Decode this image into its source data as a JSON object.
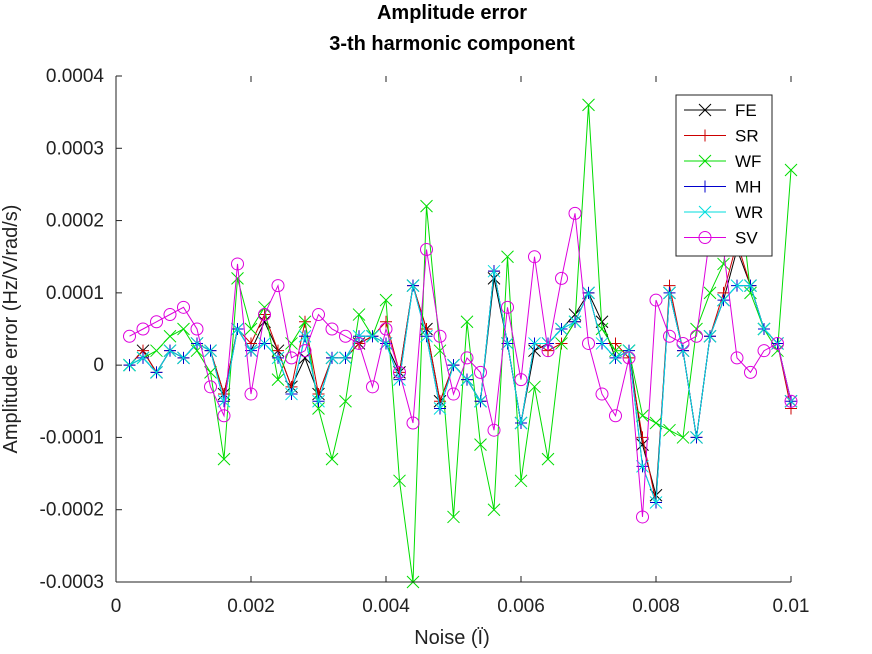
{
  "chart_data": {
    "type": "line",
    "title": "Amplitude error",
    "subtitle": "3-th harmonic component",
    "xlabel": "Noise (Ï)",
    "ylabel": "Amplitude error (Hz/V/rad/s)",
    "xlim": [
      0,
      0.01
    ],
    "ylim": [
      -0.0003,
      0.0004
    ],
    "xticks": [
      0,
      0.002,
      0.004,
      0.006,
      0.008,
      0.01
    ],
    "xtick_labels": [
      "0",
      "0.002",
      "0.004",
      "0.006",
      "0.008",
      "0.01"
    ],
    "yticks": [
      -0.0003,
      -0.0002,
      -0.0001,
      0,
      0.0001,
      0.0002,
      0.0003,
      0.0004
    ],
    "ytick_labels": [
      "-0.0003",
      "-0.0002",
      "-0.0001",
      "0",
      "0.0001",
      "0.0002",
      "0.0003",
      "0.0004"
    ],
    "grid": false,
    "legend_position": "top-right",
    "x": [
      0.0002,
      0.0004,
      0.0006,
      0.0008,
      0.001,
      0.0012,
      0.0014,
      0.0016,
      0.0018,
      0.002,
      0.0022,
      0.0024,
      0.0026,
      0.0028,
      0.003,
      0.0032,
      0.0034,
      0.0036,
      0.0038,
      0.004,
      0.0042,
      0.0044,
      0.0046,
      0.0048,
      0.005,
      0.0052,
      0.0054,
      0.0056,
      0.0058,
      0.006,
      0.0062,
      0.0064,
      0.0066,
      0.0068,
      0.007,
      0.0072,
      0.0074,
      0.0076,
      0.0078,
      0.008,
      0.0082,
      0.0084,
      0.0086,
      0.0088,
      0.009,
      0.0092,
      0.0094,
      0.0096,
      0.0098,
      0.01
    ],
    "series": [
      {
        "name": "FE",
        "color": "#000000",
        "marker": "x",
        "values": [
          0,
          2e-05,
          -1e-05,
          2e-05,
          1e-05,
          3e-05,
          2e-05,
          -4e-05,
          5e-05,
          2e-05,
          6e-05,
          2e-05,
          -3e-05,
          1e-05,
          -4e-05,
          1e-05,
          1e-05,
          3e-05,
          4e-05,
          3e-05,
          -1e-05,
          0.00011,
          5e-05,
          -5e-05,
          0,
          -2e-05,
          -5e-05,
          0.00012,
          3e-05,
          -8e-05,
          2e-05,
          3e-05,
          5e-05,
          7e-05,
          0.0001,
          6e-05,
          1e-05,
          2e-05,
          -0.00011,
          -0.00018,
          0.0001,
          2e-05,
          -0.0001,
          4e-05,
          9e-05,
          0.00016,
          0.00011,
          5e-05,
          3e-05,
          -5e-05
        ]
      },
      {
        "name": "SR",
        "color": "#cc0000",
        "marker": "+",
        "values": [
          0,
          2e-05,
          -1e-05,
          2e-05,
          1e-05,
          3e-05,
          2e-05,
          -4e-05,
          5e-05,
          3e-05,
          7e-05,
          2e-05,
          -3e-05,
          6e-05,
          -4e-05,
          1e-05,
          1e-05,
          3e-05,
          4e-05,
          6e-05,
          -1e-05,
          0.00011,
          5e-05,
          -5e-05,
          0,
          -2e-05,
          -5e-05,
          0.00013,
          3e-05,
          -8e-05,
          3e-05,
          2e-05,
          3e-05,
          6e-05,
          0.0001,
          3e-05,
          3e-05,
          1e-05,
          -0.0001,
          -0.00019,
          0.00011,
          2e-05,
          -0.0001,
          4e-05,
          0.0001,
          0.00017,
          0.00011,
          5e-05,
          3e-05,
          -6e-05
        ]
      },
      {
        "name": "WF",
        "color": "#00dd00",
        "marker": "x",
        "values": [
          0,
          1e-05,
          2e-05,
          4e-05,
          5e-05,
          2e-05,
          -1e-05,
          -0.00013,
          0.00012,
          5e-05,
          8e-05,
          -2e-05,
          3e-05,
          6e-05,
          -6e-05,
          -0.00013,
          -5e-05,
          7e-05,
          4e-05,
          9e-05,
          -0.00016,
          -0.0003,
          0.00022,
          2e-05,
          -0.00021,
          6e-05,
          -0.00011,
          -0.0002,
          0.00015,
          -0.00016,
          -3e-05,
          -0.00013,
          3e-05,
          6e-05,
          0.00036,
          5e-05,
          2e-05,
          2e-05,
          -7e-05,
          -8e-05,
          -9e-05,
          -0.0001,
          5e-05,
          0.0001,
          0.00014,
          0.00027,
          0.0001,
          5e-05,
          2e-05,
          0.00027
        ]
      },
      {
        "name": "MH",
        "color": "#0000cc",
        "marker": "+",
        "values": [
          0,
          1e-05,
          -1e-05,
          2e-05,
          1e-05,
          3e-05,
          2e-05,
          -5e-05,
          5e-05,
          2e-05,
          3e-05,
          1e-05,
          -4e-05,
          4e-05,
          -5e-05,
          1e-05,
          1e-05,
          4e-05,
          4e-05,
          3e-05,
          -2e-05,
          0.00011,
          4e-05,
          -6e-05,
          0,
          -2e-05,
          -5e-05,
          0.00013,
          3e-05,
          -8e-05,
          3e-05,
          3e-05,
          5e-05,
          6e-05,
          0.0001,
          3e-05,
          1e-05,
          2e-05,
          -0.00014,
          -0.00019,
          0.0001,
          2e-05,
          -0.0001,
          4e-05,
          9e-05,
          0.00011,
          0.00011,
          5e-05,
          3e-05,
          -5e-05
        ]
      },
      {
        "name": "WR",
        "color": "#00dddd",
        "marker": "x",
        "values": [
          0,
          1e-05,
          -1e-05,
          2e-05,
          1e-05,
          3e-05,
          2e-05,
          -5e-05,
          5e-05,
          2e-05,
          3e-05,
          1e-05,
          -4e-05,
          4e-05,
          -5e-05,
          1e-05,
          1e-05,
          4e-05,
          4e-05,
          3e-05,
          -2e-05,
          0.00011,
          4e-05,
          -6e-05,
          0,
          -2e-05,
          -5e-05,
          0.00013,
          3e-05,
          -8e-05,
          3e-05,
          3e-05,
          5e-05,
          6e-05,
          0.0001,
          3e-05,
          1e-05,
          2e-05,
          -0.00014,
          -0.00019,
          0.0001,
          2e-05,
          -0.0001,
          4e-05,
          9e-05,
          0.00011,
          0.00011,
          5e-05,
          3e-05,
          -5e-05
        ]
      },
      {
        "name": "SV",
        "color": "#dd00dd",
        "marker": "o",
        "values": [
          4e-05,
          5e-05,
          6e-05,
          7e-05,
          8e-05,
          5e-05,
          -3e-05,
          -7e-05,
          0.00014,
          -4e-05,
          7e-05,
          0.00011,
          1e-05,
          2e-05,
          7e-05,
          5e-05,
          4e-05,
          3e-05,
          -3e-05,
          5e-05,
          -1e-05,
          -8e-05,
          0.00016,
          4e-05,
          -4e-05,
          1e-05,
          -1e-05,
          -9e-05,
          8e-05,
          -2e-05,
          0.00015,
          2e-05,
          0.00012,
          0.00021,
          3e-05,
          -4e-05,
          -7e-05,
          1e-05,
          -0.00021,
          9e-05,
          4e-05,
          3e-05,
          4e-05,
          0.00018,
          0.00016,
          1e-05,
          -1e-05,
          2e-05,
          3e-05,
          -5e-05
        ]
      }
    ]
  }
}
